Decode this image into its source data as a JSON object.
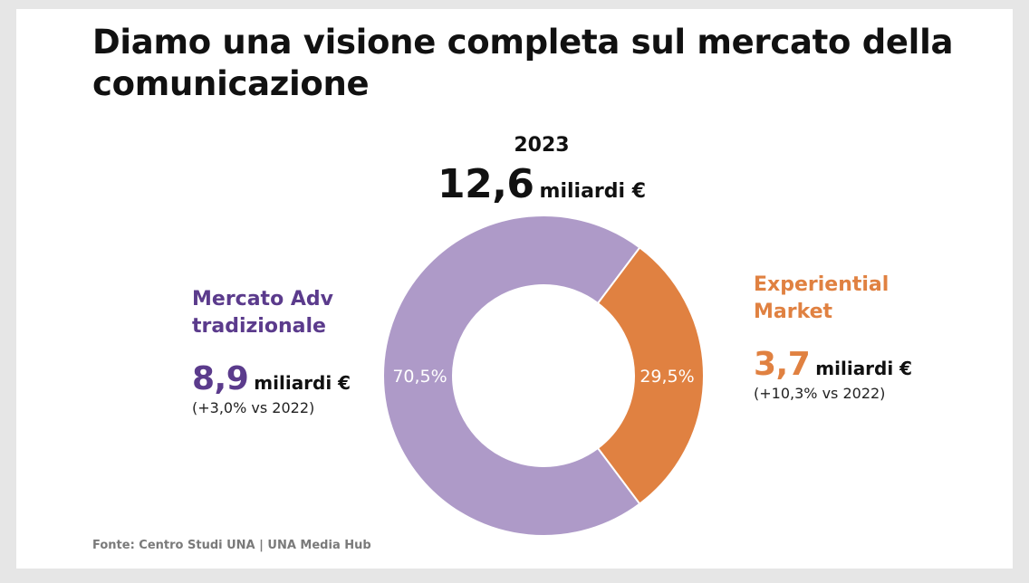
{
  "title": "Diamo una visione completa sul mercato della comunicazione",
  "total": {
    "year": "2023",
    "value": "12,6",
    "unit": "miliardi €"
  },
  "segments": [
    {
      "name": "Mercato Adv\ntradizionale",
      "value": "8,9",
      "unit": "miliardi €",
      "change": "(+3,0% vs 2022)",
      "percent_label": "70,5%"
    },
    {
      "name": "Experiential\nMarket",
      "value": "3,7",
      "unit": "miliardi €",
      "change": "(+10,3% vs 2022)",
      "percent_label": "29,5%"
    }
  ],
  "source": "Fonte: Centro Studi UNA | UNA Media Hub",
  "colors": {
    "adv": "#ae9ac8",
    "adv_text": "#5b3b8c",
    "experiential": "#e08141",
    "experiential_text": "#e08141"
  },
  "chart_data": {
    "type": "pie",
    "title": "2023",
    "categories": [
      "Mercato Adv tradizionale",
      "Experiential Market"
    ],
    "values": [
      70.5,
      29.5
    ],
    "labels": [
      "70,5%",
      "29,5%"
    ],
    "totals_billion_eur": [
      8.9,
      3.7
    ],
    "total_billion_eur": 12.6
  }
}
